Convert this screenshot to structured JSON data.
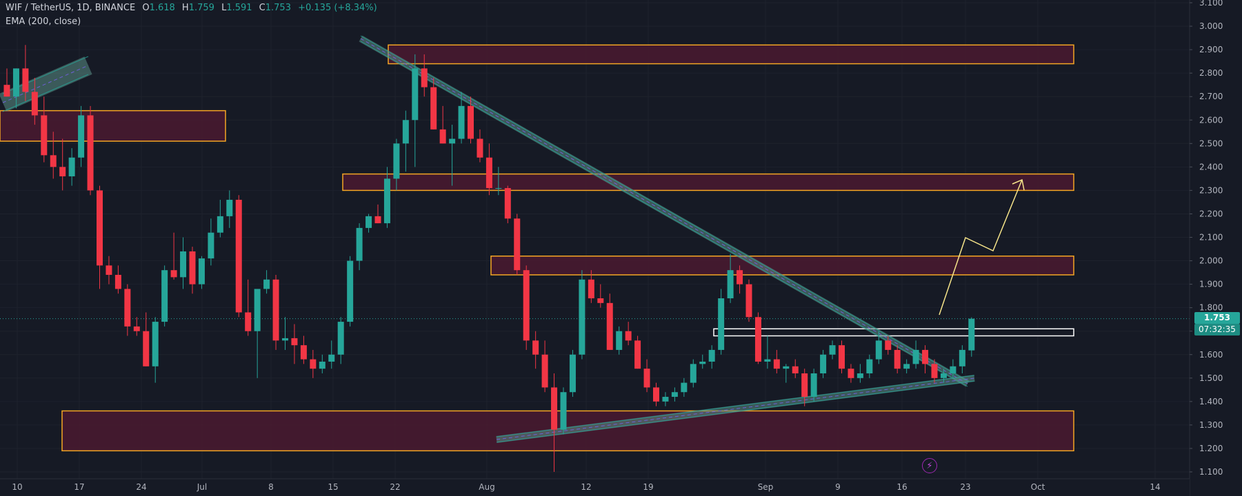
{
  "header": {
    "symbol": "WIF / TetherUS, 1D, BINANCE",
    "o_label": "O",
    "o_value": "1.618",
    "h_label": "H",
    "h_value": "1.759",
    "l_label": "L",
    "l_value": "1.591",
    "c_label": "C",
    "c_value": "1.753",
    "change": "+0.135 (+8.34%)",
    "indicator": "EMA (200, close)"
  },
  "price_tag": {
    "price": "1.753",
    "countdown": "07:32:35"
  },
  "lightning_icon": "lightning-icon",
  "colors": {
    "background": "#161a25",
    "up": "#26a69a",
    "down": "#f23645",
    "zone_fill": "#4a1a30",
    "zone_border": "#f5a623",
    "trendline": "#5b8f87",
    "arrow": "#f7e58a",
    "axis_text": "#b2b5be"
  },
  "chart_data": {
    "type": "candlestick",
    "ylim": [
      1.1,
      3.1
    ],
    "y_ticks": [
      "1.100",
      "1.200",
      "1.300",
      "1.400",
      "1.500",
      "1.600",
      "1.700",
      "1.800",
      "1.900",
      "2.000",
      "2.100",
      "2.200",
      "2.300",
      "2.400",
      "2.500",
      "2.600",
      "2.700",
      "2.800",
      "2.900",
      "3.000",
      "3.100"
    ],
    "x_ticks": [
      "10",
      "17",
      "24",
      "Jul",
      "8",
      "15",
      "22",
      "Aug",
      "12",
      "19",
      "Sep",
      "9",
      "16",
      "23",
      "Oct",
      "14"
    ],
    "candles": [
      [
        2.75,
        2.82,
        2.7,
        2.7
      ],
      [
        2.7,
        2.82,
        2.65,
        2.82
      ],
      [
        2.82,
        2.92,
        2.68,
        2.72
      ],
      [
        2.72,
        2.78,
        2.58,
        2.62
      ],
      [
        2.62,
        2.7,
        2.42,
        2.45
      ],
      [
        2.45,
        2.55,
        2.35,
        2.4
      ],
      [
        2.4,
        2.52,
        2.3,
        2.36
      ],
      [
        2.36,
        2.48,
        2.32,
        2.44
      ],
      [
        2.44,
        2.66,
        2.4,
        2.62
      ],
      [
        2.62,
        2.66,
        2.28,
        2.3
      ],
      [
        2.3,
        2.32,
        1.88,
        1.98
      ],
      [
        1.98,
        2.02,
        1.9,
        1.94
      ],
      [
        1.94,
        1.98,
        1.86,
        1.88
      ],
      [
        1.88,
        1.9,
        1.68,
        1.72
      ],
      [
        1.72,
        1.76,
        1.68,
        1.7
      ],
      [
        1.7,
        1.78,
        1.55,
        1.55
      ],
      [
        1.55,
        1.76,
        1.48,
        1.74
      ],
      [
        1.74,
        1.98,
        1.72,
        1.96
      ],
      [
        1.96,
        2.12,
        1.92,
        1.93
      ],
      [
        1.93,
        2.1,
        1.88,
        2.04
      ],
      [
        2.04,
        2.06,
        1.86,
        1.9
      ],
      [
        1.9,
        2.02,
        1.88,
        2.01
      ],
      [
        2.01,
        2.18,
        1.98,
        2.12
      ],
      [
        2.12,
        2.26,
        2.1,
        2.19
      ],
      [
        2.19,
        2.3,
        2.14,
        2.26
      ],
      [
        2.26,
        2.28,
        1.76,
        1.78
      ],
      [
        1.78,
        1.92,
        1.68,
        1.7
      ],
      [
        1.7,
        1.86,
        1.5,
        1.88
      ],
      [
        1.88,
        1.96,
        1.86,
        1.92
      ],
      [
        1.92,
        1.94,
        1.62,
        1.66
      ],
      [
        1.66,
        1.76,
        1.62,
        1.67
      ],
      [
        1.67,
        1.73,
        1.56,
        1.64
      ],
      [
        1.64,
        1.68,
        1.56,
        1.58
      ],
      [
        1.58,
        1.62,
        1.5,
        1.54
      ],
      [
        1.54,
        1.6,
        1.52,
        1.57
      ],
      [
        1.57,
        1.66,
        1.54,
        1.6
      ],
      [
        1.6,
        1.76,
        1.56,
        1.74
      ],
      [
        1.74,
        2.02,
        1.72,
        2.0
      ],
      [
        2.0,
        2.16,
        1.96,
        2.14
      ],
      [
        2.14,
        2.2,
        2.12,
        2.19
      ],
      [
        2.19,
        2.24,
        2.16,
        2.16
      ],
      [
        2.16,
        2.4,
        2.14,
        2.35
      ],
      [
        2.35,
        2.52,
        2.3,
        2.5
      ],
      [
        2.5,
        2.64,
        2.38,
        2.6
      ],
      [
        2.6,
        2.88,
        2.4,
        2.82
      ],
      [
        2.82,
        2.88,
        2.7,
        2.74
      ],
      [
        2.74,
        2.78,
        2.56,
        2.56
      ],
      [
        2.56,
        2.66,
        2.5,
        2.5
      ],
      [
        2.5,
        2.58,
        2.32,
        2.52
      ],
      [
        2.52,
        2.72,
        2.5,
        2.66
      ],
      [
        2.66,
        2.7,
        2.5,
        2.52
      ],
      [
        2.52,
        2.56,
        2.42,
        2.44
      ],
      [
        2.44,
        2.5,
        2.28,
        2.31
      ],
      [
        2.31,
        2.4,
        2.28,
        2.31
      ],
      [
        2.31,
        2.32,
        2.16,
        2.18
      ],
      [
        2.18,
        2.2,
        1.94,
        1.96
      ],
      [
        1.96,
        1.98,
        1.62,
        1.66
      ],
      [
        1.66,
        1.7,
        1.54,
        1.6
      ],
      [
        1.6,
        1.66,
        1.44,
        1.46
      ],
      [
        1.46,
        1.52,
        1.1,
        1.28
      ],
      [
        1.28,
        1.46,
        1.26,
        1.44
      ],
      [
        1.44,
        1.62,
        1.42,
        1.6
      ],
      [
        1.6,
        1.96,
        1.58,
        1.92
      ],
      [
        1.92,
        1.96,
        1.82,
        1.84
      ],
      [
        1.84,
        1.9,
        1.8,
        1.82
      ],
      [
        1.82,
        1.86,
        1.62,
        1.62
      ],
      [
        1.62,
        1.72,
        1.6,
        1.7
      ],
      [
        1.7,
        1.74,
        1.64,
        1.66
      ],
      [
        1.66,
        1.68,
        1.54,
        1.54
      ],
      [
        1.54,
        1.58,
        1.44,
        1.46
      ],
      [
        1.46,
        1.48,
        1.38,
        1.4
      ],
      [
        1.4,
        1.44,
        1.38,
        1.42
      ],
      [
        1.42,
        1.46,
        1.4,
        1.44
      ],
      [
        1.44,
        1.5,
        1.42,
        1.48
      ],
      [
        1.48,
        1.58,
        1.46,
        1.56
      ],
      [
        1.56,
        1.6,
        1.54,
        1.57
      ],
      [
        1.57,
        1.64,
        1.54,
        1.62
      ],
      [
        1.62,
        1.88,
        1.6,
        1.84
      ],
      [
        1.84,
        2.03,
        1.82,
        1.96
      ],
      [
        1.96,
        1.98,
        1.86,
        1.9
      ],
      [
        1.9,
        1.92,
        1.74,
        1.76
      ],
      [
        1.76,
        1.78,
        1.56,
        1.57
      ],
      [
        1.57,
        1.68,
        1.54,
        1.58
      ],
      [
        1.58,
        1.62,
        1.52,
        1.54
      ],
      [
        1.54,
        1.56,
        1.48,
        1.55
      ],
      [
        1.55,
        1.58,
        1.5,
        1.52
      ],
      [
        1.52,
        1.54,
        1.38,
        1.42
      ],
      [
        1.42,
        1.54,
        1.4,
        1.52
      ],
      [
        1.52,
        1.62,
        1.5,
        1.6
      ],
      [
        1.6,
        1.66,
        1.58,
        1.64
      ],
      [
        1.64,
        1.66,
        1.52,
        1.54
      ],
      [
        1.54,
        1.56,
        1.48,
        1.5
      ],
      [
        1.5,
        1.56,
        1.48,
        1.52
      ],
      [
        1.52,
        1.6,
        1.5,
        1.58
      ],
      [
        1.58,
        1.7,
        1.56,
        1.66
      ],
      [
        1.66,
        1.68,
        1.6,
        1.62
      ],
      [
        1.62,
        1.64,
        1.52,
        1.54
      ],
      [
        1.54,
        1.58,
        1.52,
        1.56
      ],
      [
        1.56,
        1.66,
        1.54,
        1.62
      ],
      [
        1.62,
        1.64,
        1.52,
        1.56
      ],
      [
        1.56,
        1.58,
        1.48,
        1.5
      ],
      [
        1.5,
        1.54,
        1.48,
        1.52
      ],
      [
        1.52,
        1.58,
        1.5,
        1.55
      ],
      [
        1.55,
        1.64,
        1.52,
        1.62
      ],
      [
        1.618,
        1.759,
        1.591,
        1.753
      ]
    ],
    "zones": [
      {
        "from": 2.84,
        "to": 2.92
      },
      {
        "from": 2.51,
        "to": 2.64
      },
      {
        "from": 2.3,
        "to": 2.37
      },
      {
        "from": 1.94,
        "to": 2.02
      },
      {
        "from": 1.19,
        "to": 1.36
      }
    ],
    "highlight_zone": {
      "from": 1.68,
      "to": 1.71
    },
    "current_price": 1.753
  }
}
